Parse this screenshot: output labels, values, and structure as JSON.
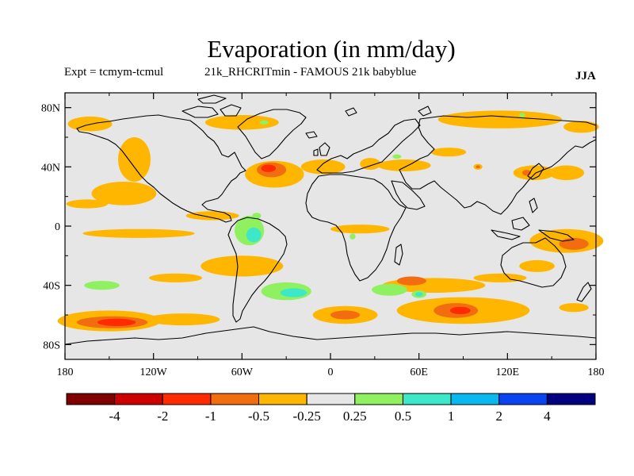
{
  "header": {
    "title": "Evaporation (in mm/day)",
    "expt": "Expt = tcmym-tcmul",
    "run": "21k_RHCRITmin - FAMOUS 21k babyblue",
    "season": "JJA"
  },
  "chart_data": {
    "type": "heatmap",
    "title": "Evaporation (in mm/day)",
    "projection": "cylindrical-equidistant world map",
    "lon_range": [
      -180,
      180
    ],
    "lat_range": [
      -90,
      90
    ],
    "x_ticks": [
      {
        "value": -180,
        "label": "180"
      },
      {
        "value": -120,
        "label": "120W"
      },
      {
        "value": -60,
        "label": "60W"
      },
      {
        "value": 0,
        "label": "0"
      },
      {
        "value": 60,
        "label": "60E"
      },
      {
        "value": 120,
        "label": "120E"
      },
      {
        "value": 180,
        "label": "180"
      }
    ],
    "y_ticks": [
      {
        "value": 80,
        "label": "80N"
      },
      {
        "value": 40,
        "label": "40N"
      },
      {
        "value": 0,
        "label": "0"
      },
      {
        "value": -40,
        "label": "40S"
      },
      {
        "value": -80,
        "label": "80S"
      }
    ],
    "background_color": "#e6e6e6",
    "colorbar": {
      "colors": [
        "#800000",
        "#cc0000",
        "#ff2a00",
        "#f26d10",
        "#ffb600",
        "#e6e6e6",
        "#8ff060",
        "#3de8c8",
        "#0ab8f0",
        "#0a44f0",
        "#000080"
      ],
      "labels": [
        "-4",
        "-2",
        "-1",
        "-0.5",
        "-0.25",
        "0.25",
        "0.5",
        "1",
        "2",
        "4"
      ]
    },
    "regions": [
      {
        "class": 4,
        "lon": -163,
        "lat": 69,
        "rx": 15,
        "ry": 5
      },
      {
        "class": 4,
        "lon": -60,
        "lat": 70,
        "rx": 25,
        "ry": 5
      },
      {
        "class": 4,
        "lon": 115,
        "lat": 72,
        "rx": 42,
        "ry": 6
      },
      {
        "class": 4,
        "lon": 170,
        "lat": 67,
        "rx": 12,
        "ry": 4
      },
      {
        "class": 4,
        "lon": -133,
        "lat": 45,
        "rx": 11,
        "ry": 15
      },
      {
        "class": 4,
        "lon": -140,
        "lat": 22,
        "rx": 22,
        "ry": 8
      },
      {
        "class": 4,
        "lon": -38,
        "lat": 35,
        "rx": 20,
        "ry": 9
      },
      {
        "class": 3,
        "lon": -40,
        "lat": 38,
        "rx": 10,
        "ry": 5
      },
      {
        "class": 2,
        "lon": -42,
        "lat": 39,
        "rx": 5,
        "ry": 2.5
      },
      {
        "class": 4,
        "lon": -5,
        "lat": 40,
        "rx": 15,
        "ry": 5
      },
      {
        "class": 4,
        "lon": 50,
        "lat": 41,
        "rx": 18,
        "ry": 4
      },
      {
        "class": 3,
        "lon": 25,
        "lat": 42,
        "rx": 4,
        "ry": 2.5
      },
      {
        "class": 4,
        "lon": 27,
        "lat": 42,
        "rx": 7,
        "ry": 4
      },
      {
        "class": 4,
        "lon": 80,
        "lat": 50,
        "rx": 12,
        "ry": 3
      },
      {
        "class": 4,
        "lon": 138,
        "lat": 36,
        "rx": 14,
        "ry": 5
      },
      {
        "class": 4,
        "lon": 160,
        "lat": 36,
        "rx": 12,
        "ry": 5
      },
      {
        "class": 3,
        "lon": 133,
        "lat": 36,
        "rx": 3,
        "ry": 2
      },
      {
        "class": 4,
        "lon": 100,
        "lat": 40,
        "rx": 3,
        "ry": 2
      },
      {
        "class": 3,
        "lon": 100,
        "lat": 40,
        "rx": 1.5,
        "ry": 1
      },
      {
        "class": 4,
        "lon": -165,
        "lat": 15,
        "rx": 14,
        "ry": 3
      },
      {
        "class": 4,
        "lon": -80,
        "lat": 7,
        "rx": 18,
        "ry": 3
      },
      {
        "class": 4,
        "lon": -130,
        "lat": -5,
        "rx": 38,
        "ry": 3
      },
      {
        "class": 4,
        "lon": -60,
        "lat": -27,
        "rx": 28,
        "ry": 7
      },
      {
        "class": 4,
        "lon": -105,
        "lat": -35,
        "rx": 18,
        "ry": 3
      },
      {
        "class": 4,
        "lon": 20,
        "lat": -2,
        "rx": 20,
        "ry": 3
      },
      {
        "class": 4,
        "lon": 115,
        "lat": -35,
        "rx": 18,
        "ry": 3
      },
      {
        "class": 4,
        "lon": 160,
        "lat": -10,
        "rx": 25,
        "ry": 8
      },
      {
        "class": 4,
        "lon": 140,
        "lat": -27,
        "rx": 12,
        "ry": 4
      },
      {
        "class": 3,
        "lon": 165,
        "lat": -12,
        "rx": 10,
        "ry": 4
      },
      {
        "class": 4,
        "lon": -150,
        "lat": -64,
        "rx": 35,
        "ry": 7
      },
      {
        "class": 3,
        "lon": -148,
        "lat": -65,
        "rx": 24,
        "ry": 4
      },
      {
        "class": 2,
        "lon": -145,
        "lat": -65,
        "rx": 13,
        "ry": 2.5
      },
      {
        "class": 4,
        "lon": -100,
        "lat": -63,
        "rx": 25,
        "ry": 4
      },
      {
        "class": 4,
        "lon": 10,
        "lat": -60,
        "rx": 22,
        "ry": 6
      },
      {
        "class": 3,
        "lon": 10,
        "lat": -60,
        "rx": 10,
        "ry": 3
      },
      {
        "class": 4,
        "lon": 90,
        "lat": -57,
        "rx": 45,
        "ry": 9
      },
      {
        "class": 3,
        "lon": 85,
        "lat": -57,
        "rx": 15,
        "ry": 5
      },
      {
        "class": 2,
        "lon": 88,
        "lat": -57,
        "rx": 7,
        "ry": 2.5
      },
      {
        "class": 4,
        "lon": 70,
        "lat": -40,
        "rx": 35,
        "ry": 5
      },
      {
        "class": 3,
        "lon": 55,
        "lat": -37,
        "rx": 10,
        "ry": 3
      },
      {
        "class": 4,
        "lon": 165,
        "lat": -55,
        "rx": 10,
        "ry": 3
      },
      {
        "class": 6,
        "lon": -55,
        "lat": -3,
        "rx": 10,
        "ry": 10
      },
      {
        "class": 7,
        "lon": -52,
        "lat": -6,
        "rx": 5,
        "ry": 5
      },
      {
        "class": 6,
        "lon": -155,
        "lat": -40,
        "rx": 12,
        "ry": 3
      },
      {
        "class": 6,
        "lon": -30,
        "lat": -44,
        "rx": 17,
        "ry": 6
      },
      {
        "class": 7,
        "lon": -25,
        "lat": -45,
        "rx": 9,
        "ry": 3
      },
      {
        "class": 6,
        "lon": 40,
        "lat": -43,
        "rx": 12,
        "ry": 4
      },
      {
        "class": 6,
        "lon": 60,
        "lat": -46,
        "rx": 5,
        "ry": 2.5
      },
      {
        "class": 7,
        "lon": 60,
        "lat": -46,
        "rx": 2.5,
        "ry": 1.5
      },
      {
        "class": 6,
        "lon": -45,
        "lat": 70,
        "rx": 3,
        "ry": 1.5
      },
      {
        "class": 6,
        "lon": -50,
        "lat": 7,
        "rx": 3,
        "ry": 2
      },
      {
        "class": 6,
        "lon": 15,
        "lat": -7,
        "rx": 2,
        "ry": 2
      },
      {
        "class": 6,
        "lon": 45,
        "lat": 47,
        "rx": 3,
        "ry": 1.5
      },
      {
        "class": 6,
        "lon": 130,
        "lat": 75,
        "rx": 2,
        "ry": 1.5
      }
    ]
  }
}
